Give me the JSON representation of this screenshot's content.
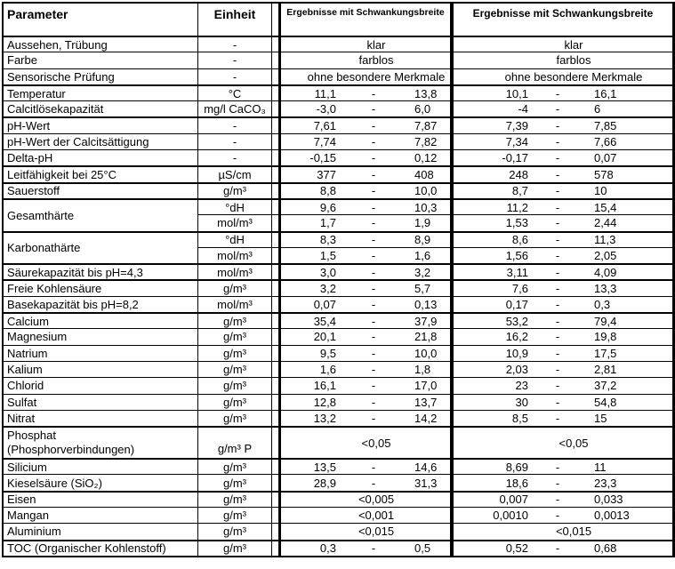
{
  "sep": "-",
  "header": {
    "parameter": "Parameter",
    "einheit": "Einheit",
    "ergebnisse_1": "Ergebnisse mit Schwankungsbreite",
    "ergebnisse_2": "Ergebnisse mit Schwankungsbreite"
  },
  "rows": [
    {
      "param": "Aussehen, Trübung",
      "unit": "-",
      "b1": {
        "merged": "klar"
      },
      "b2": {
        "merged": "klar"
      },
      "thick": true
    },
    {
      "param": "Farbe",
      "unit": "-",
      "b1": {
        "merged": "farblos"
      },
      "b2": {
        "merged": "farblos"
      }
    },
    {
      "param": "Sensorische Prüfung",
      "unit": "-",
      "b1": {
        "merged": "ohne besondere Merkmale"
      },
      "b2": {
        "merged": "ohne besondere Merkmale"
      }
    },
    {
      "param": "Temperatur",
      "unit": "°C",
      "b1": {
        "min": "11,1",
        "max": "13,8"
      },
      "b2": {
        "min": "10,1",
        "max": "16,1"
      },
      "thick": true
    },
    {
      "param": "Calcitlösekapazität",
      "unit": "mg/l CaCO₃",
      "b1": {
        "min": "-3,0",
        "max": "6,0"
      },
      "b2": {
        "min": "-4",
        "max": "6"
      }
    },
    {
      "param": "pH-Wert",
      "unit": "-",
      "b1": {
        "min": "7,61",
        "max": "7,87"
      },
      "b2": {
        "min": "7,39",
        "max": "7,85"
      },
      "thick": true
    },
    {
      "param": "pH-Wert der Calcitsättigung",
      "unit": "-",
      "b1": {
        "min": "7,74",
        "max": "7,82"
      },
      "b2": {
        "min": "7,34",
        "max": "7,66"
      }
    },
    {
      "param": "Delta-pH",
      "unit": "-",
      "b1": {
        "min": "-0,15",
        "max": "0,12"
      },
      "b2": {
        "min": "-0,17",
        "max": "0,07"
      }
    },
    {
      "param": "Leitfähigkeit bei 25°C",
      "unit": "µS/cm",
      "b1": {
        "min": "377",
        "max": "408"
      },
      "b2": {
        "min": "248",
        "max": "578"
      },
      "thick": true
    },
    {
      "param": "Sauerstoff",
      "unit": "g/m³",
      "b1": {
        "min": "8,8",
        "max": "10,0"
      },
      "b2": {
        "min": "8,7",
        "max": "10"
      },
      "thick": true
    },
    {
      "param": "Gesamthärte",
      "span2": true,
      "unit": "°dH",
      "b1": {
        "min": "9,6",
        "max": "10,3"
      },
      "b2": {
        "min": "11,2",
        "max": "15,4"
      },
      "thick": true
    },
    {
      "skip": true,
      "unit": "mol/m³",
      "b1": {
        "min": "1,7",
        "max": "1,9"
      },
      "b2": {
        "min": "1,53",
        "max": "2,44"
      }
    },
    {
      "param": "Karbonathärte",
      "span2": true,
      "unit": "°dH",
      "b1": {
        "min": "8,3",
        "max": "8,9"
      },
      "b2": {
        "min": "8,6",
        "max": "11,3"
      },
      "thick": true
    },
    {
      "skip": true,
      "unit": "mol/m³",
      "b1": {
        "min": "1,5",
        "max": "1,6"
      },
      "b2": {
        "min": "1,56",
        "max": "2,05"
      }
    },
    {
      "param": "Säurekapazität bis pH=4,3",
      "unit": "mol/m³",
      "b1": {
        "min": "3,0",
        "max": "3,2"
      },
      "b2": {
        "min": "3,11",
        "max": "4,09"
      },
      "thick": true
    },
    {
      "param": "Freie Kohlensäure",
      "unit": "g/m³",
      "b1": {
        "min": "3,2",
        "max": "5,7"
      },
      "b2": {
        "min": "7,6",
        "max": "13,3"
      },
      "thick": true
    },
    {
      "param": "Basekapazität bis pH=8,2",
      "unit": "mol/m³",
      "b1": {
        "min": "0,07",
        "max": "0,13"
      },
      "b2": {
        "min": "0,17",
        "max": "0,3"
      }
    },
    {
      "param": "Calcium",
      "unit": "g/m³",
      "b1": {
        "min": "35,4",
        "max": "37,9"
      },
      "b2": {
        "min": "53,2",
        "max": "79,4"
      },
      "thick": true
    },
    {
      "param": "Magnesium",
      "unit": "g/m³",
      "b1": {
        "min": "20,1",
        "max": "21,8"
      },
      "b2": {
        "min": "16,2",
        "max": "19,8"
      }
    },
    {
      "param": "Natrium",
      "unit": "g/m³",
      "b1": {
        "min": "9,5",
        "max": "10,0"
      },
      "b2": {
        "min": "10,9",
        "max": "17,5"
      }
    },
    {
      "param": "Kalium",
      "unit": "g/m³",
      "b1": {
        "min": "1,6",
        "max": "1,8"
      },
      "b2": {
        "min": "2,03",
        "max": "2,81"
      }
    },
    {
      "param": "Chlorid",
      "unit": "g/m³",
      "b1": {
        "min": "16,1",
        "max": "17,0"
      },
      "b2": {
        "min": "23",
        "max": "37,2"
      }
    },
    {
      "param": "Sulfat",
      "unit": "g/m³",
      "b1": {
        "min": "12,8",
        "max": "13,7"
      },
      "b2": {
        "min": "30",
        "max": "54,8"
      }
    },
    {
      "param": "Nitrat",
      "unit": "g/m³",
      "b1": {
        "min": "13,2",
        "max": "14,2"
      },
      "b2": {
        "min": "8,5",
        "max": "15"
      }
    },
    {
      "param": "Phosphat",
      "param2": "(Phosphorverbindungen)",
      "unit": "g/m³ P",
      "b1": {
        "merged": "<0,05"
      },
      "b2": {
        "merged": "<0,05"
      },
      "thick": true,
      "tall": true,
      "unit_bottom": true
    },
    {
      "param": "Silicium",
      "unit": "g/m³",
      "b1": {
        "min": "13,5",
        "max": "14,6"
      },
      "b2": {
        "min": "8,69",
        "max": "11"
      },
      "thick": true
    },
    {
      "param": "Kieselsäure (SiO₂)",
      "unit": "g/m³",
      "b1": {
        "min": "28,9",
        "max": "31,3"
      },
      "b2": {
        "min": "18,6",
        "max": "23,3"
      }
    },
    {
      "param": "Eisen",
      "unit": "g/m³",
      "b1": {
        "merged": "<0,005"
      },
      "b2": {
        "min": "0,007",
        "max": "0,033"
      },
      "thick": true
    },
    {
      "param": "Mangan",
      "unit": "g/m³",
      "b1": {
        "merged": "<0,001"
      },
      "b2": {
        "min": "0,0010",
        "max": "0,0013"
      }
    },
    {
      "param": "Aluminium",
      "unit": "g/m³",
      "b1": {
        "merged": "<0,015"
      },
      "b2": {
        "merged": "<0,015"
      }
    },
    {
      "param": "TOC (Organischer Kohlenstoff)",
      "unit": "g/m³",
      "b1": {
        "min": "0,3",
        "max": "0,5"
      },
      "b2": {
        "min": "0,52",
        "max": "0,68"
      },
      "thick": true
    }
  ]
}
